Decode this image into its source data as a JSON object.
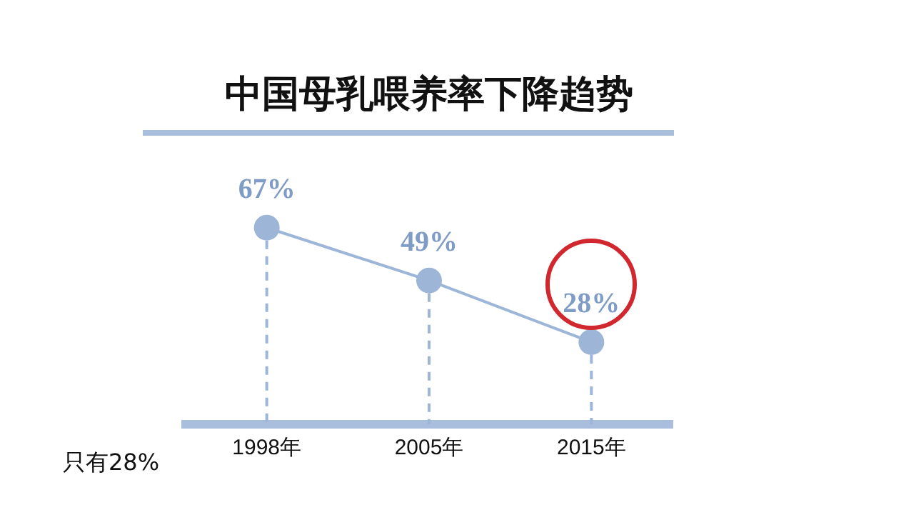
{
  "chart_data": {
    "type": "line",
    "title": "中国母乳喂养率下降趋势",
    "categories": [
      "1998年",
      "2005年",
      "2015年"
    ],
    "series": [
      {
        "color": "#9db6d8",
        "values": [
          67,
          49,
          28
        ],
        "value_labels": [
          "67%",
          "49%",
          "28%"
        ]
      }
    ],
    "marker": "circle",
    "legend": false,
    "grid": "x",
    "annotations": [
      "只有28%"
    ]
  }
}
